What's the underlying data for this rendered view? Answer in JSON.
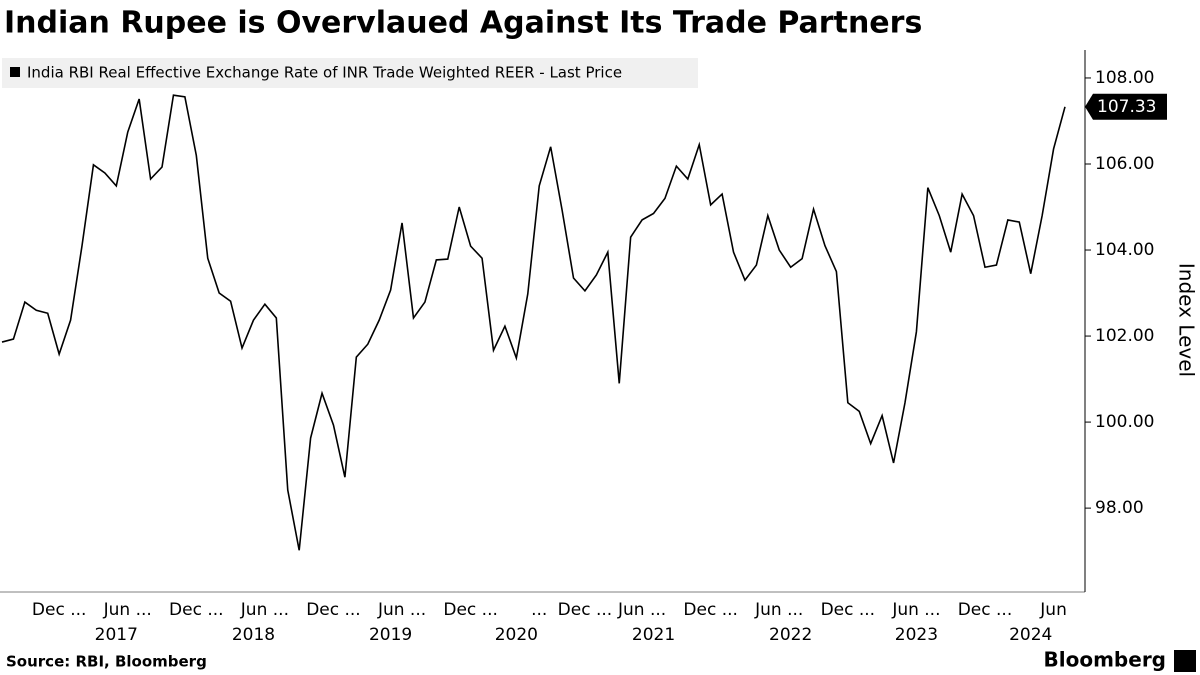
{
  "chart_data": {
    "type": "line",
    "title": "Indian Rupee is Overvlaued Against Its Trade Partners",
    "legend": "India RBI Real Effective Exchange Rate of INR Trade Weighted REER - Last Price",
    "y_label": "Index Level",
    "source": "Source: RBI, Bloomberg",
    "brand": "Bloomberg",
    "categories": [
      null,
      null,
      null,
      null,
      null,
      "Dec ...",
      null,
      null,
      null,
      null,
      null,
      "Jun ...",
      null,
      null,
      null,
      null,
      null,
      "Dec ...",
      null,
      null,
      null,
      null,
      null,
      "Jun ...",
      null,
      null,
      null,
      null,
      null,
      "Dec ...",
      null,
      null,
      null,
      null,
      null,
      "Jun ...",
      null,
      null,
      null,
      null,
      null,
      "Dec ...",
      null,
      null,
      null,
      null,
      null,
      "...",
      null,
      null,
      null,
      "Dec ...",
      null,
      null,
      null,
      null,
      "Jun ...",
      null,
      null,
      null,
      null,
      null,
      "Dec ...",
      null,
      null,
      null,
      null,
      null,
      "Jun ...",
      null,
      null,
      null,
      null,
      null,
      "Dec ...",
      null,
      null,
      null,
      null,
      null,
      "Jun ...",
      null,
      null,
      null,
      null,
      null,
      "Dec ...",
      null,
      null,
      null,
      null,
      null,
      "Jun",
      null
    ],
    "years": [
      null,
      null,
      null,
      null,
      null,
      null,
      null,
      null,
      null,
      null,
      "2017",
      null,
      null,
      null,
      null,
      null,
      null,
      null,
      null,
      null,
      null,
      null,
      "2018",
      null,
      null,
      null,
      null,
      null,
      null,
      null,
      null,
      null,
      null,
      null,
      "2019",
      null,
      null,
      null,
      null,
      null,
      null,
      null,
      null,
      null,
      null,
      "2020",
      null,
      null,
      null,
      null,
      null,
      null,
      null,
      null,
      null,
      null,
      null,
      "2021",
      null,
      null,
      null,
      null,
      null,
      null,
      null,
      null,
      null,
      null,
      null,
      "2022",
      null,
      null,
      null,
      null,
      null,
      null,
      null,
      null,
      null,
      null,
      "2023",
      null,
      null,
      null,
      null,
      null,
      null,
      null,
      null,
      null,
      "2024",
      null,
      null,
      null
    ],
    "series": [
      {
        "name": "India RBI Real Effective Exchange Rate of INR Trade Weighted REER - Last Price",
        "color": "#000000",
        "values": [
          101.86,
          101.93,
          102.79,
          102.6,
          102.53,
          101.58,
          102.37,
          104.1,
          105.98,
          105.79,
          105.49,
          106.74,
          107.51,
          105.65,
          105.93,
          107.6,
          107.56,
          106.2,
          103.81,
          103.0,
          102.81,
          101.72,
          102.37,
          102.74,
          102.42,
          98.42,
          97.02,
          99.63,
          100.67,
          99.93,
          98.72,
          101.51,
          101.81,
          102.37,
          103.07,
          104.63,
          102.42,
          102.79,
          103.77,
          103.79,
          105.0,
          104.09,
          103.81,
          101.67,
          102.23,
          101.49,
          102.98,
          105.49,
          106.4,
          104.93,
          103.35,
          103.05,
          103.42,
          103.95,
          100.9,
          104.3,
          104.7,
          104.85,
          105.2,
          105.95,
          105.65,
          106.45,
          105.05,
          105.3,
          103.95,
          103.3,
          103.65,
          104.8,
          104.0,
          103.6,
          103.8,
          104.95,
          104.1,
          103.5,
          100.45,
          100.25,
          99.5,
          100.15,
          99.05,
          100.45,
          102.1,
          105.45,
          104.8,
          103.95,
          105.3,
          104.8,
          103.6,
          103.65,
          104.7,
          104.65,
          103.45,
          104.8,
          106.35,
          107.33
        ]
      }
    ],
    "ylim": [
      96.05,
      108.65
    ],
    "yticks": [
      {
        "value": 98,
        "label": "98.00"
      },
      {
        "value": 100,
        "label": "100.00"
      },
      {
        "value": 102,
        "label": "102.00"
      },
      {
        "value": 104,
        "label": "104.00"
      },
      {
        "value": 106,
        "label": "106.00"
      },
      {
        "value": 108,
        "label": "108.00"
      }
    ],
    "grid": false
  }
}
